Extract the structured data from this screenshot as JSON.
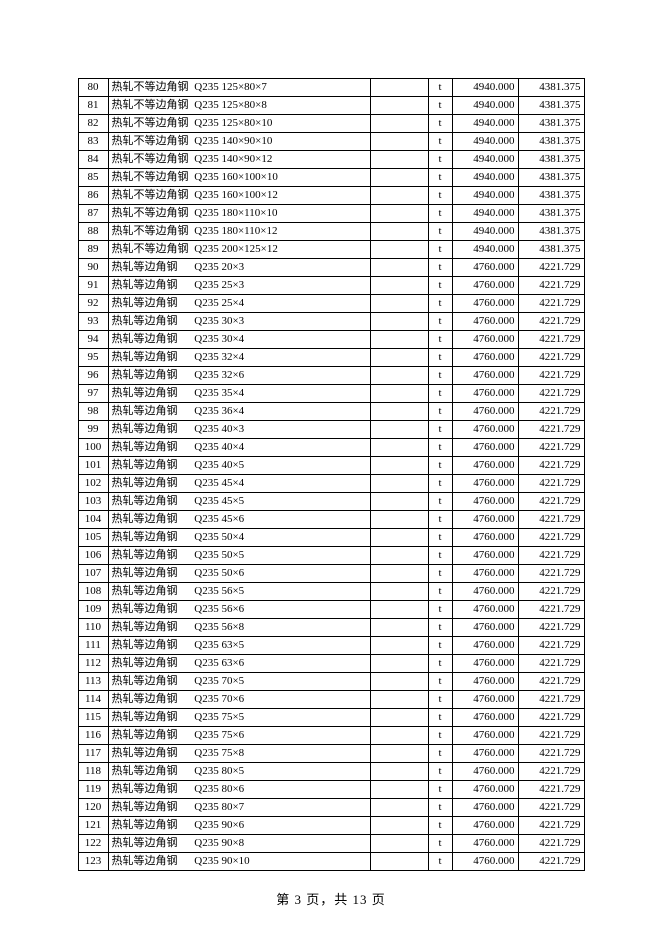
{
  "footer": {
    "prefix": "第 ",
    "current": "3",
    "mid": " 页，共 ",
    "total": "13",
    "suffix": " 页"
  },
  "unit": "t",
  "wideType": "热轧不等边角钢",
  "narrowType": "热轧等边角钢",
  "rows": [
    {
      "idx": 80,
      "wide": true,
      "grade": "Q235",
      "spec": "125×80×7",
      "v1": "4940.000",
      "v2": "4381.375"
    },
    {
      "idx": 81,
      "wide": true,
      "grade": "Q235",
      "spec": "125×80×8",
      "v1": "4940.000",
      "v2": "4381.375"
    },
    {
      "idx": 82,
      "wide": true,
      "grade": "Q235",
      "spec": "125×80×10",
      "v1": "4940.000",
      "v2": "4381.375"
    },
    {
      "idx": 83,
      "wide": true,
      "grade": "Q235",
      "spec": "140×90×10",
      "v1": "4940.000",
      "v2": "4381.375"
    },
    {
      "idx": 84,
      "wide": true,
      "grade": "Q235",
      "spec": "140×90×12",
      "v1": "4940.000",
      "v2": "4381.375"
    },
    {
      "idx": 85,
      "wide": true,
      "grade": "Q235",
      "spec": "160×100×10",
      "v1": "4940.000",
      "v2": "4381.375"
    },
    {
      "idx": 86,
      "wide": true,
      "grade": "Q235",
      "spec": "160×100×12",
      "v1": "4940.000",
      "v2": "4381.375"
    },
    {
      "idx": 87,
      "wide": true,
      "grade": "Q235",
      "spec": "180×110×10",
      "v1": "4940.000",
      "v2": "4381.375"
    },
    {
      "idx": 88,
      "wide": true,
      "grade": "Q235",
      "spec": "180×110×12",
      "v1": "4940.000",
      "v2": "4381.375"
    },
    {
      "idx": 89,
      "wide": true,
      "grade": "Q235",
      "spec": "200×125×12",
      "v1": "4940.000",
      "v2": "4381.375"
    },
    {
      "idx": 90,
      "wide": false,
      "grade": "Q235",
      "spec": "20×3",
      "v1": "4760.000",
      "v2": "4221.729"
    },
    {
      "idx": 91,
      "wide": false,
      "grade": "Q235",
      "spec": "25×3",
      "v1": "4760.000",
      "v2": "4221.729"
    },
    {
      "idx": 92,
      "wide": false,
      "grade": "Q235",
      "spec": "25×4",
      "v1": "4760.000",
      "v2": "4221.729"
    },
    {
      "idx": 93,
      "wide": false,
      "grade": "Q235",
      "spec": "30×3",
      "v1": "4760.000",
      "v2": "4221.729"
    },
    {
      "idx": 94,
      "wide": false,
      "grade": "Q235",
      "spec": "30×4",
      "v1": "4760.000",
      "v2": "4221.729"
    },
    {
      "idx": 95,
      "wide": false,
      "grade": "Q235",
      "spec": "32×4",
      "v1": "4760.000",
      "v2": "4221.729"
    },
    {
      "idx": 96,
      "wide": false,
      "grade": "Q235",
      "spec": "32×6",
      "v1": "4760.000",
      "v2": "4221.729"
    },
    {
      "idx": 97,
      "wide": false,
      "grade": "Q235",
      "spec": "35×4",
      "v1": "4760.000",
      "v2": "4221.729"
    },
    {
      "idx": 98,
      "wide": false,
      "grade": "Q235",
      "spec": "36×4",
      "v1": "4760.000",
      "v2": "4221.729"
    },
    {
      "idx": 99,
      "wide": false,
      "grade": "Q235",
      "spec": "40×3",
      "v1": "4760.000",
      "v2": "4221.729"
    },
    {
      "idx": 100,
      "wide": false,
      "grade": "Q235",
      "spec": "40×4",
      "v1": "4760.000",
      "v2": "4221.729"
    },
    {
      "idx": 101,
      "wide": false,
      "grade": "Q235",
      "spec": "40×5",
      "v1": "4760.000",
      "v2": "4221.729"
    },
    {
      "idx": 102,
      "wide": false,
      "grade": "Q235",
      "spec": "45×4",
      "v1": "4760.000",
      "v2": "4221.729"
    },
    {
      "idx": 103,
      "wide": false,
      "grade": "Q235",
      "spec": "45×5",
      "v1": "4760.000",
      "v2": "4221.729"
    },
    {
      "idx": 104,
      "wide": false,
      "grade": "Q235",
      "spec": "45×6",
      "v1": "4760.000",
      "v2": "4221.729"
    },
    {
      "idx": 105,
      "wide": false,
      "grade": "Q235",
      "spec": "50×4",
      "v1": "4760.000",
      "v2": "4221.729"
    },
    {
      "idx": 106,
      "wide": false,
      "grade": "Q235",
      "spec": "50×5",
      "v1": "4760.000",
      "v2": "4221.729"
    },
    {
      "idx": 107,
      "wide": false,
      "grade": "Q235",
      "spec": "50×6",
      "v1": "4760.000",
      "v2": "4221.729"
    },
    {
      "idx": 108,
      "wide": false,
      "grade": "Q235",
      "spec": "56×5",
      "v1": "4760.000",
      "v2": "4221.729"
    },
    {
      "idx": 109,
      "wide": false,
      "grade": "Q235",
      "spec": "56×6",
      "v1": "4760.000",
      "v2": "4221.729"
    },
    {
      "idx": 110,
      "wide": false,
      "grade": "Q235",
      "spec": "56×8",
      "v1": "4760.000",
      "v2": "4221.729"
    },
    {
      "idx": 111,
      "wide": false,
      "grade": "Q235",
      "spec": "63×5",
      "v1": "4760.000",
      "v2": "4221.729"
    },
    {
      "idx": 112,
      "wide": false,
      "grade": "Q235",
      "spec": "63×6",
      "v1": "4760.000",
      "v2": "4221.729"
    },
    {
      "idx": 113,
      "wide": false,
      "grade": "Q235",
      "spec": "70×5",
      "v1": "4760.000",
      "v2": "4221.729"
    },
    {
      "idx": 114,
      "wide": false,
      "grade": "Q235",
      "spec": "70×6",
      "v1": "4760.000",
      "v2": "4221.729"
    },
    {
      "idx": 115,
      "wide": false,
      "grade": "Q235",
      "spec": "75×5",
      "v1": "4760.000",
      "v2": "4221.729"
    },
    {
      "idx": 116,
      "wide": false,
      "grade": "Q235",
      "spec": "75×6",
      "v1": "4760.000",
      "v2": "4221.729"
    },
    {
      "idx": 117,
      "wide": false,
      "grade": "Q235",
      "spec": "75×8",
      "v1": "4760.000",
      "v2": "4221.729"
    },
    {
      "idx": 118,
      "wide": false,
      "grade": "Q235",
      "spec": "80×5",
      "v1": "4760.000",
      "v2": "4221.729"
    },
    {
      "idx": 119,
      "wide": false,
      "grade": "Q235",
      "spec": "80×6",
      "v1": "4760.000",
      "v2": "4221.729"
    },
    {
      "idx": 120,
      "wide": false,
      "grade": "Q235",
      "spec": "80×7",
      "v1": "4760.000",
      "v2": "4221.729"
    },
    {
      "idx": 121,
      "wide": false,
      "grade": "Q235",
      "spec": "90×6",
      "v1": "4760.000",
      "v2": "4221.729"
    },
    {
      "idx": 122,
      "wide": false,
      "grade": "Q235",
      "spec": "90×8",
      "v1": "4760.000",
      "v2": "4221.729"
    },
    {
      "idx": 123,
      "wide": false,
      "grade": "Q235",
      "spec": "90×10",
      "v1": "4760.000",
      "v2": "4221.729"
    }
  ]
}
